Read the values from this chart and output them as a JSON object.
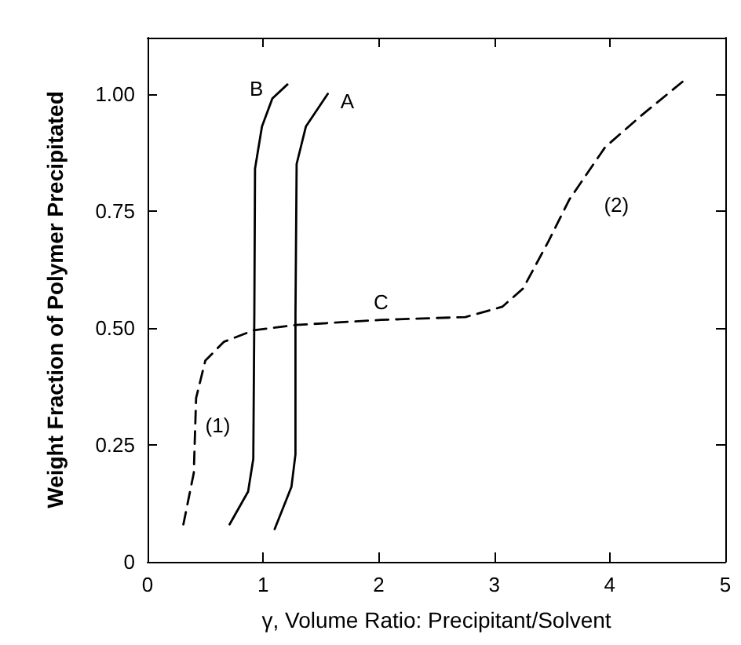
{
  "chart_data": {
    "type": "line",
    "xlabel": "γ, Volume Ratio: Precipitant/Solvent",
    "ylabel": "Weight Fraction of Polymer Precipitated",
    "xlim": [
      0,
      5
    ],
    "xticks": [
      0,
      1,
      2,
      3,
      4,
      5
    ],
    "ylim": [
      0,
      1.12
    ],
    "yticks": [
      {
        "value": 0,
        "label": "0"
      },
      {
        "value": 0.25,
        "label": "0.25"
      },
      {
        "value": 0.5,
        "label": "0.50"
      },
      {
        "value": 0.75,
        "label": "0.75"
      },
      {
        "value": 1,
        "label": "1.00"
      }
    ],
    "grid": false,
    "legend": false,
    "marker": "none",
    "series": [
      {
        "name": "B",
        "color": "#000000",
        "line_style": "solid",
        "x": [
          0.71,
          0.87,
          0.915,
          0.924,
          0.93,
          0.99,
          1.08,
          1.21
        ],
        "values": [
          0.08,
          0.15,
          0.22,
          0.53,
          0.84,
          0.93,
          0.99,
          1.02
        ]
      },
      {
        "name": "A",
        "color": "#000000",
        "line_style": "solid",
        "x": [
          1.1,
          1.245,
          1.28,
          1.28,
          1.29,
          1.37,
          1.56
        ],
        "values": [
          0.07,
          0.16,
          0.23,
          0.53,
          0.85,
          0.93,
          1.0
        ]
      },
      {
        "name": "C",
        "color": "#000000",
        "line_style": "dashed",
        "x": [
          0.31,
          0.4,
          0.42,
          0.5,
          0.66,
          0.92,
          1.28,
          2.02,
          2.75,
          3.07,
          3.25,
          3.47,
          3.65,
          3.96,
          4.27,
          4.65
        ],
        "values": [
          0.08,
          0.19,
          0.35,
          0.43,
          0.47,
          0.495,
          0.506,
          0.517,
          0.523,
          0.545,
          0.584,
          0.685,
          0.774,
          0.886,
          0.953,
          1.03
        ]
      }
    ],
    "annotations": [
      "(1)",
      "(2)"
    ]
  }
}
